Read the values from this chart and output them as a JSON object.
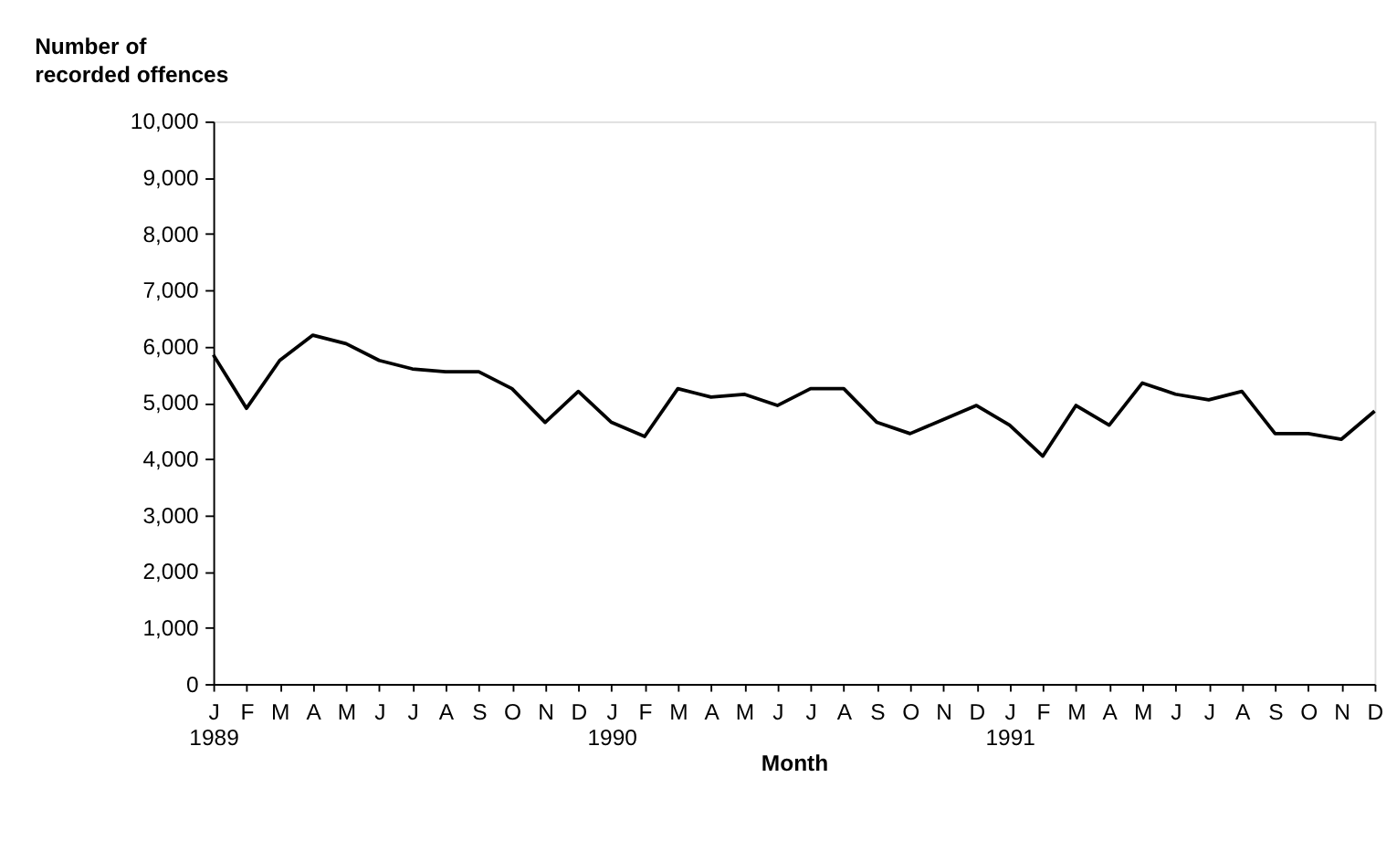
{
  "chart_data": {
    "type": "line",
    "ylabel": "Number of\nrecorded offences",
    "xlabel": "Month",
    "categories": [
      "J\n1989",
      "F",
      "M",
      "A",
      "M",
      "J",
      "J",
      "A",
      "S",
      "O",
      "N",
      "D",
      "J\n1990",
      "F",
      "M",
      "A",
      "M",
      "J",
      "J",
      "A",
      "S",
      "O",
      "N",
      "D",
      "J\n1991",
      "F",
      "M",
      "A",
      "M",
      "J",
      "J",
      "A",
      "S",
      "O",
      "N",
      "D"
    ],
    "series": [
      {
        "color": "#000000",
        "values": [
          5850,
          4900,
          5750,
          6200,
          6050,
          5750,
          5600,
          5550,
          5550,
          5250,
          4650,
          5200,
          4650,
          4400,
          5250,
          5100,
          5150,
          4950,
          5250,
          5250,
          4650,
          4450,
          4700,
          4950,
          4600,
          4050,
          4950,
          4600,
          5350,
          5150,
          5050,
          5200,
          4450,
          4450,
          4350,
          4850
        ]
      }
    ],
    "ylim": [
      0,
      10000
    ],
    "yticks": [
      {
        "value": 0,
        "label": "0"
      },
      {
        "value": 1000,
        "label": "1,000"
      },
      {
        "value": 2000,
        "label": "2,000"
      },
      {
        "value": 3000,
        "label": "3,000"
      },
      {
        "value": 4000,
        "label": "4,000"
      },
      {
        "value": 5000,
        "label": "5,000"
      },
      {
        "value": 6000,
        "label": "6,000"
      },
      {
        "value": 7000,
        "label": "7,000"
      },
      {
        "value": 8000,
        "label": "8,000"
      },
      {
        "value": 9000,
        "label": "9,000"
      },
      {
        "value": 10000,
        "label": "10,000"
      }
    ],
    "grid": false,
    "legend": false,
    "marker": "none",
    "line_style": "solid"
  }
}
